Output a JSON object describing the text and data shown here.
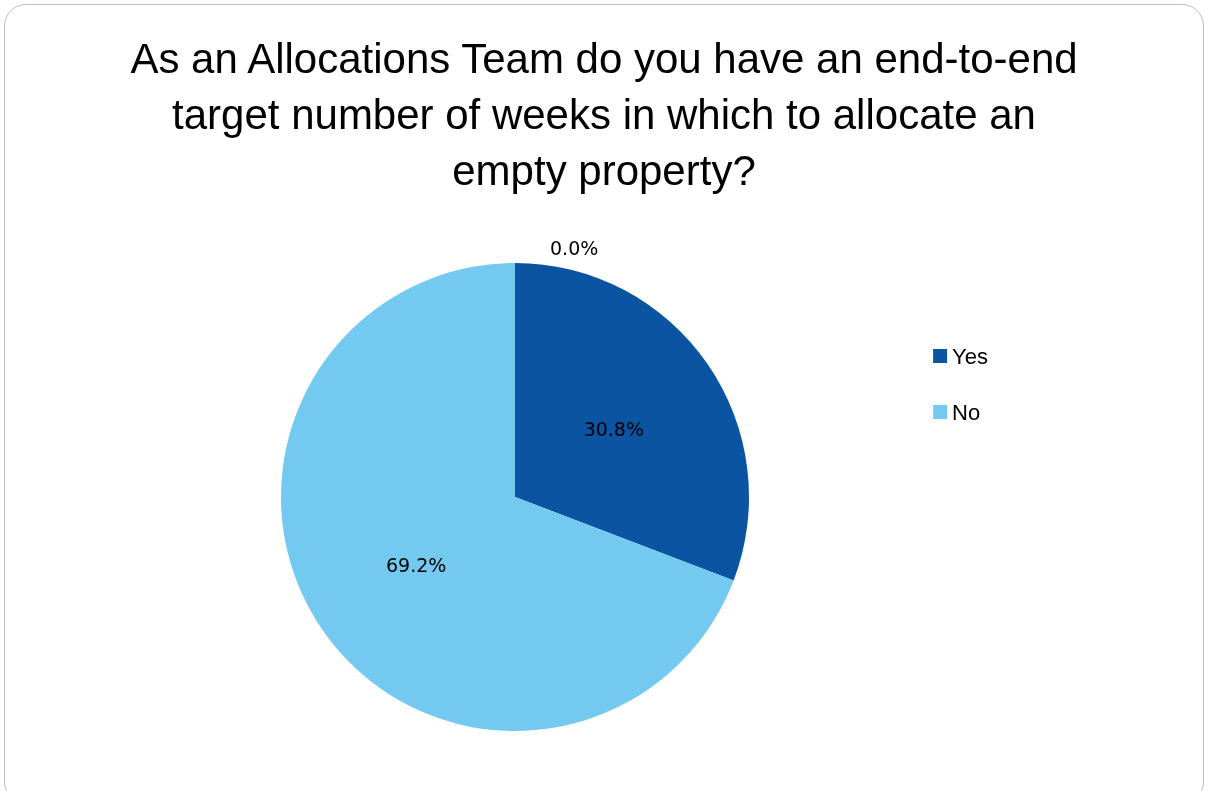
{
  "chart_data": {
    "type": "pie",
    "title": "As an Allocations Team do you have an end-to-end target number of weeks in which to allocate an empty property?",
    "categories": [
      "Yes",
      "No",
      null
    ],
    "values": [
      30.8,
      69.2,
      0
    ],
    "value_labels": [
      "30.8%",
      "69.2%",
      "0.0%"
    ],
    "colors": [
      "#0a54a2",
      "#74c9f0",
      "#a5a5a5"
    ],
    "legend": "right"
  }
}
